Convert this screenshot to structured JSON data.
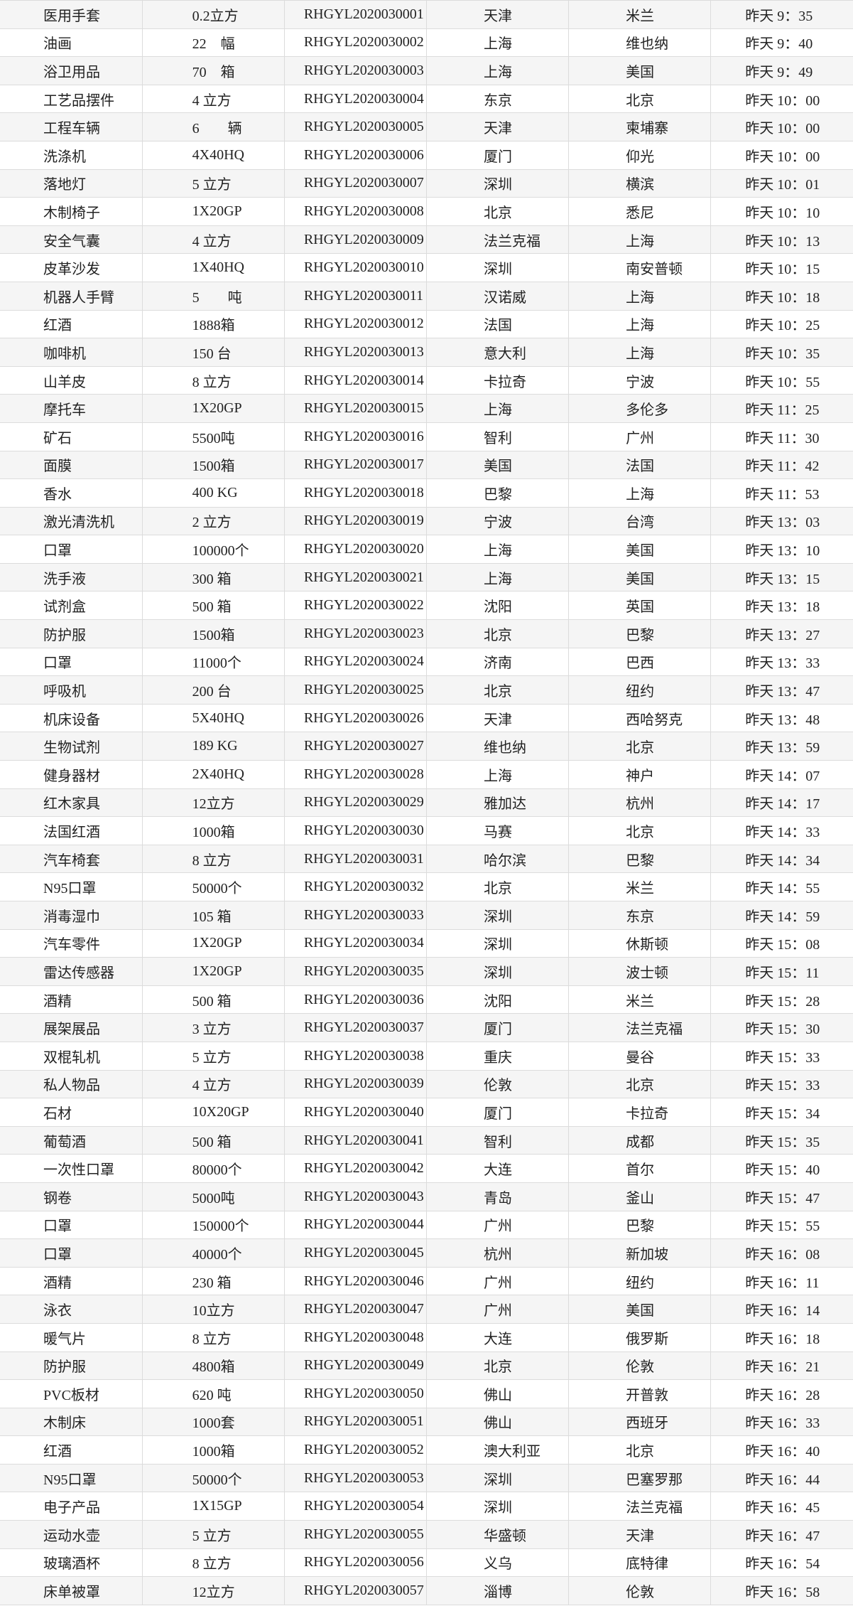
{
  "rows": [
    [
      "医用手套",
      "0.2立方",
      "RHGYL2020030001",
      "天津",
      "米兰",
      "昨天 9：35"
    ],
    [
      "油画",
      "22　幅",
      "RHGYL2020030002",
      "上海",
      "维也纳",
      "昨天 9：40"
    ],
    [
      "浴卫用品",
      "70　箱",
      "RHGYL2020030003",
      "上海",
      "美国",
      "昨天 9：49"
    ],
    [
      "工艺品摆件",
      "4 立方",
      "RHGYL2020030004",
      "东京",
      "北京",
      "昨天 10：00"
    ],
    [
      "工程车辆",
      "6　　辆",
      "RHGYL2020030005",
      "天津",
      "柬埔寨",
      "昨天 10：00"
    ],
    [
      "洗涤机",
      "4X40HQ",
      "RHGYL2020030006",
      "厦门",
      "仰光",
      "昨天 10：00"
    ],
    [
      "落地灯",
      "5 立方",
      "RHGYL2020030007",
      "深圳",
      "横滨",
      "昨天 10：01"
    ],
    [
      "木制椅子",
      "1X20GP",
      "RHGYL2020030008",
      "北京",
      "悉尼",
      "昨天 10：10"
    ],
    [
      "安全气囊",
      "4 立方",
      "RHGYL2020030009",
      "法兰克福",
      "上海",
      "昨天 10：13"
    ],
    [
      "皮革沙发",
      "1X40HQ",
      "RHGYL2020030010",
      "深圳",
      "南安普顿",
      "昨天 10：15"
    ],
    [
      "机器人手臂",
      "5　　吨",
      "RHGYL2020030011",
      "汉诺威",
      "上海",
      "昨天 10：18"
    ],
    [
      "红酒",
      "1888箱",
      "RHGYL2020030012",
      "法国",
      "上海",
      "昨天 10：25"
    ],
    [
      "咖啡机",
      "150 台",
      "RHGYL2020030013",
      "意大利",
      "上海",
      "昨天 10：35"
    ],
    [
      "山羊皮",
      "8 立方",
      "RHGYL2020030014",
      "卡拉奇",
      "宁波",
      "昨天 10：55"
    ],
    [
      "摩托车",
      "1X20GP",
      "RHGYL2020030015",
      "上海",
      "多伦多",
      "昨天 11：25"
    ],
    [
      "矿石",
      "5500吨",
      "RHGYL2020030016",
      "智利",
      "广州",
      "昨天 11：30"
    ],
    [
      "面膜",
      "1500箱",
      "RHGYL2020030017",
      "美国",
      "法国",
      "昨天 11：42"
    ],
    [
      "香水",
      "400 KG",
      "RHGYL2020030018",
      "巴黎",
      "上海",
      "昨天 11：53"
    ],
    [
      "激光清洗机",
      "2 立方",
      "RHGYL2020030019",
      "宁波",
      "台湾",
      "昨天 13：03"
    ],
    [
      "口罩",
      "100000个",
      "RHGYL2020030020",
      "上海",
      "美国",
      "昨天 13：10"
    ],
    [
      "洗手液",
      "300 箱",
      "RHGYL2020030021",
      "上海",
      "美国",
      "昨天 13：15"
    ],
    [
      "试剂盒",
      "500 箱",
      "RHGYL2020030022",
      "沈阳",
      "英国",
      "昨天 13：18"
    ],
    [
      "防护服",
      "1500箱",
      "RHGYL2020030023",
      "北京",
      "巴黎",
      "昨天 13：27"
    ],
    [
      "口罩",
      "11000个",
      "RHGYL2020030024",
      "济南",
      "巴西",
      "昨天 13：33"
    ],
    [
      "呼吸机",
      "200 台",
      "RHGYL2020030025",
      "北京",
      "纽约",
      "昨天 13：47"
    ],
    [
      "机床设备",
      "5X40HQ",
      "RHGYL2020030026",
      "天津",
      "西哈努克",
      "昨天 13：48"
    ],
    [
      "生物试剂",
      "189 KG",
      "RHGYL2020030027",
      "维也纳",
      "北京",
      "昨天 13：59"
    ],
    [
      "健身器材",
      "2X40HQ",
      "RHGYL2020030028",
      "上海",
      "神户",
      "昨天 14：07"
    ],
    [
      "红木家具",
      "12立方",
      "RHGYL2020030029",
      "雅加达",
      "杭州",
      "昨天 14：17"
    ],
    [
      "法国红酒",
      "1000箱",
      "RHGYL2020030030",
      "马赛",
      "北京",
      "昨天 14：33"
    ],
    [
      "汽车椅套",
      "8 立方",
      "RHGYL2020030031",
      "哈尔滨",
      "巴黎",
      "昨天 14：34"
    ],
    [
      "N95口罩",
      "50000个",
      "RHGYL2020030032",
      "北京",
      "米兰",
      "昨天 14：55"
    ],
    [
      "消毒湿巾",
      "105 箱",
      "RHGYL2020030033",
      "深圳",
      "东京",
      "昨天 14：59"
    ],
    [
      "汽车零件",
      "1X20GP",
      "RHGYL2020030034",
      "深圳",
      "休斯顿",
      "昨天 15：08"
    ],
    [
      "雷达传感器",
      "1X20GP",
      "RHGYL2020030035",
      "深圳",
      "波士顿",
      "昨天 15：11"
    ],
    [
      "酒精",
      "500 箱",
      "RHGYL2020030036",
      "沈阳",
      "米兰",
      "昨天 15：28"
    ],
    [
      "展架展品",
      "3 立方",
      "RHGYL2020030037",
      "厦门",
      "法兰克福",
      "昨天 15：30"
    ],
    [
      "双棍轧机",
      "5 立方",
      "RHGYL2020030038",
      "重庆",
      "曼谷",
      "昨天 15：33"
    ],
    [
      "私人物品",
      "4 立方",
      "RHGYL2020030039",
      "伦敦",
      "北京",
      "昨天 15：33"
    ],
    [
      "石材",
      "10X20GP",
      "RHGYL2020030040",
      "厦门",
      "卡拉奇",
      "昨天 15：34"
    ],
    [
      "葡萄酒",
      "500 箱",
      "RHGYL2020030041",
      "智利",
      "成都",
      "昨天 15：35"
    ],
    [
      "一次性口罩",
      "80000个",
      "RHGYL2020030042",
      "大连",
      "首尔",
      "昨天 15：40"
    ],
    [
      "钢卷",
      "5000吨",
      "RHGYL2020030043",
      "青岛",
      "釜山",
      "昨天 15：47"
    ],
    [
      "口罩",
      "150000个",
      "RHGYL2020030044",
      "广州",
      "巴黎",
      "昨天 15：55"
    ],
    [
      "口罩",
      "40000个",
      "RHGYL2020030045",
      "杭州",
      "新加坡",
      "昨天 16：08"
    ],
    [
      "酒精",
      "230 箱",
      "RHGYL2020030046",
      "广州",
      "纽约",
      "昨天 16：11"
    ],
    [
      "泳衣",
      "10立方",
      "RHGYL2020030047",
      "广州",
      "美国",
      "昨天 16：14"
    ],
    [
      "暖气片",
      "8 立方",
      "RHGYL2020030048",
      "大连",
      "俄罗斯",
      "昨天 16：18"
    ],
    [
      "防护服",
      "4800箱",
      "RHGYL2020030049",
      "北京",
      "伦敦",
      "昨天 16：21"
    ],
    [
      "PVC板材",
      "620 吨",
      "RHGYL2020030050",
      "佛山",
      "开普敦",
      "昨天 16：28"
    ],
    [
      "木制床",
      "1000套",
      "RHGYL2020030051",
      "佛山",
      "西班牙",
      "昨天 16：33"
    ],
    [
      "红酒",
      "1000箱",
      "RHGYL2020030052",
      "澳大利亚",
      "北京",
      "昨天 16：40"
    ],
    [
      "N95口罩",
      "50000个",
      "RHGYL2020030053",
      "深圳",
      "巴塞罗那",
      "昨天 16：44"
    ],
    [
      "电子产品",
      "1X15GP",
      "RHGYL2020030054",
      "深圳",
      "法兰克福",
      "昨天 16：45"
    ],
    [
      "运动水壶",
      "5 立方",
      "RHGYL2020030055",
      "华盛顿",
      "天津",
      "昨天 16：47"
    ],
    [
      "玻璃酒杯",
      "8 立方",
      "RHGYL2020030056",
      "义乌",
      "底特律",
      "昨天 16：54"
    ],
    [
      "床单被罩",
      "12立方",
      "RHGYL2020030057",
      "淄博",
      "伦敦",
      "昨天 16：58"
    ]
  ]
}
